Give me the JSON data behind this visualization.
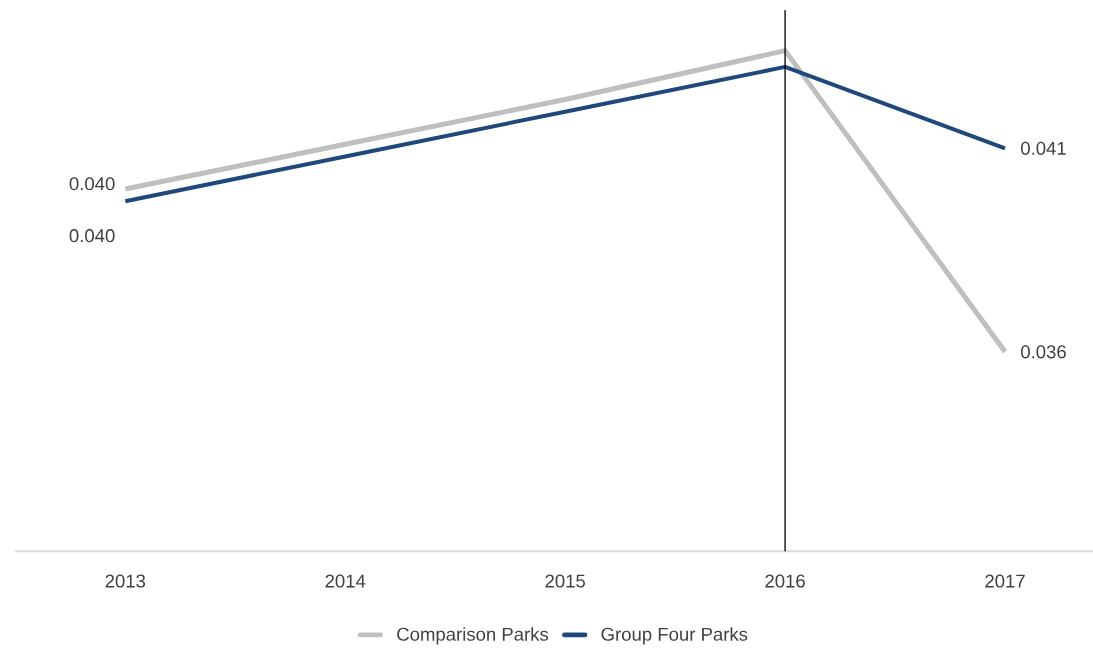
{
  "chart_data": {
    "type": "line",
    "x": [
      2013,
      2014,
      2015,
      2016,
      2017
    ],
    "series": [
      {
        "name": "Comparison Parks",
        "color": "#bfbfbf",
        "values": [
          0.04,
          0.0411,
          0.0422,
          0.0434,
          0.036
        ],
        "value_labels": [
          "0.040",
          null,
          null,
          null,
          "0.036"
        ]
      },
      {
        "name": "Group Four Parks",
        "color": "#1f497d",
        "values": [
          0.0397,
          0.0408,
          0.0419,
          0.043,
          0.041
        ],
        "value_labels": [
          "0.040",
          null,
          null,
          null,
          "0.041"
        ]
      }
    ],
    "xlim": [
      2012.5,
      2017.4
    ],
    "ylim": [
      0.0311,
      0.0444
    ],
    "xticks": [
      2013,
      2014,
      2015,
      2016,
      2017
    ],
    "tick_labels": "x",
    "ref_lines": [
      {
        "axis": "x",
        "value": 2016,
        "color": "#000000"
      }
    ],
    "legend": "bottom"
  }
}
